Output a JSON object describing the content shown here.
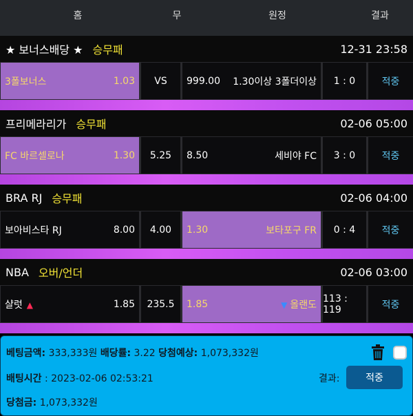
{
  "header": {
    "home": "홈",
    "draw": "무",
    "away": "원정",
    "result": "결과"
  },
  "sections": [
    {
      "title": "★ 보너스배당 ★",
      "type": "승무패",
      "time": "12-31 23:58",
      "home": "3폴보너스",
      "home_odds": "1.03",
      "draw": "VS",
      "away_odds": "999.00",
      "away": "1.30이상 3폴더이상",
      "score": "1 : 0",
      "result": "적중",
      "selected": "home"
    },
    {
      "title": "프리메라리가",
      "type": "승무패",
      "time": "02-06 05:00",
      "home": "FC 바르셀로나",
      "home_odds": "1.30",
      "draw": "5.25",
      "away_odds": "8.50",
      "away": "세비야 FC",
      "score": "3 : 0",
      "result": "적중",
      "selected": "home"
    },
    {
      "title": "BRA RJ",
      "type": "승무패",
      "time": "02-06 04:00",
      "home": "보아비스타 RJ",
      "home_odds": "8.00",
      "draw": "4.00",
      "away_odds": "1.30",
      "away": "보타포구 FR",
      "score": "0 : 4",
      "result": "적중",
      "selected": "away"
    },
    {
      "title": "NBA",
      "type": "오버/언더",
      "time": "02-06 03:00",
      "home": "샬럿",
      "home_odds": "1.85",
      "draw": "235.5",
      "away_odds": "1.85",
      "away": "올랜도",
      "score": "113 : 119",
      "result": "적중",
      "selected": "away",
      "home_marker": "▲",
      "away_marker": "▼"
    }
  ],
  "footer": {
    "bet_amount_label": "베팅금액:",
    "bet_amount": "333,333원",
    "odds_label": "배당률:",
    "odds": "3.22",
    "expected_label": "당첨예상:",
    "expected": "1,073,332원",
    "time_label": "배팅시간",
    "time": ": 2023-02-06 02:53:21",
    "result_label": "결과:",
    "result": "적중",
    "win_label": "당첨금:",
    "win": "1,073,332원"
  },
  "colors": {
    "footer": "#00aeef",
    "selected": "#9e6ac6",
    "market": "#f1e235",
    "hit": "#5fc6f0"
  }
}
